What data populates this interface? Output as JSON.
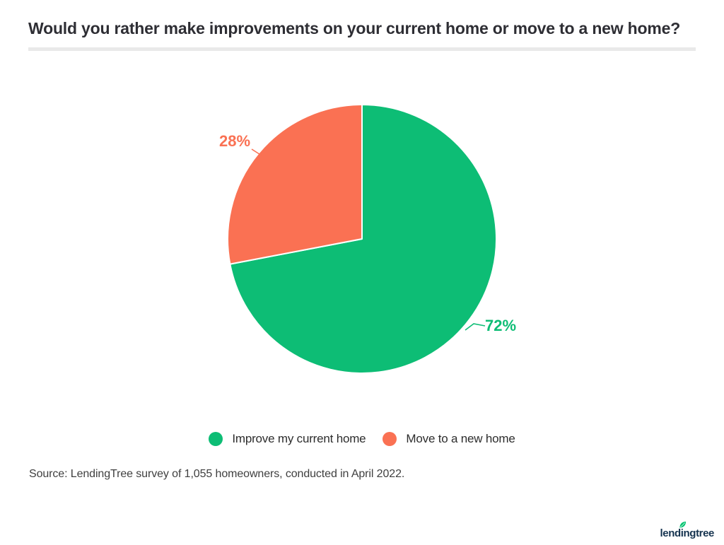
{
  "page": {
    "title": "Would you rather make improvements on your current home or move to a new home?",
    "source": "Source: LendingTree survey of 1,055 homeowners, conducted in April 2022.",
    "logo": {
      "pre": "lend",
      "i": "i",
      "post": "ngtree"
    }
  },
  "chart_data": {
    "type": "pie",
    "title": "Would you rather make improvements on your current home or move to a new home?",
    "slices": [
      {
        "label": "Improve my current home",
        "value": 72,
        "display": "72%",
        "color": "#0dbd75"
      },
      {
        "label": "Move to a new home",
        "value": 28,
        "display": "28%",
        "color": "#fa7153"
      }
    ],
    "start_angle_deg": 0,
    "direction": "clockwise",
    "legend_position": "bottom",
    "accent_colors": {
      "green": "#0dbd75",
      "coral": "#fa7153",
      "divider_gray": "#e9e9e9",
      "logo_navy": "#15334f",
      "leaf_green": "#00c36f"
    }
  }
}
